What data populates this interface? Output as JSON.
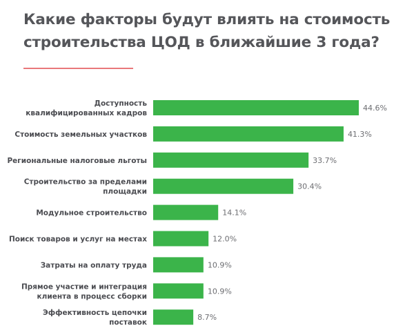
{
  "page": {
    "title_line1": "Какие факторы будут влиять на стоимость",
    "title_line2": "строительства ЦОД в ближайшие 3 года?"
  },
  "colors": {
    "bar": "#3bb44a",
    "title": "#55565a",
    "accent": "#e9777a"
  },
  "chart_data": {
    "type": "bar",
    "orientation": "horizontal",
    "categories": [
      [
        "Доступность",
        "квалифицированных кадров"
      ],
      [
        "Стоимость земельных участков"
      ],
      [
        "Региональные налоговые льготы"
      ],
      [
        "Строительство за пределами",
        "площадки"
      ],
      [
        "Модульное строительство"
      ],
      [
        "Поиск товаров и услуг на местах"
      ],
      [
        "Затраты на оплату труда"
      ],
      [
        "Прямое участие и интеграция",
        "клиента в процесс сборки"
      ],
      [
        "Эффективность цепочки",
        "поставок"
      ]
    ],
    "values": [
      44.6,
      41.3,
      33.7,
      30.4,
      14.1,
      12.0,
      10.9,
      10.9,
      8.7
    ],
    "value_labels": [
      "44.6%",
      "41.3%",
      "33.7%",
      "30.4%",
      "14.1%",
      "12.0%",
      "10.9%",
      "10.9%",
      "8.7%"
    ],
    "xlim": [
      0,
      44.6
    ],
    "grid": false,
    "legend": "none"
  }
}
